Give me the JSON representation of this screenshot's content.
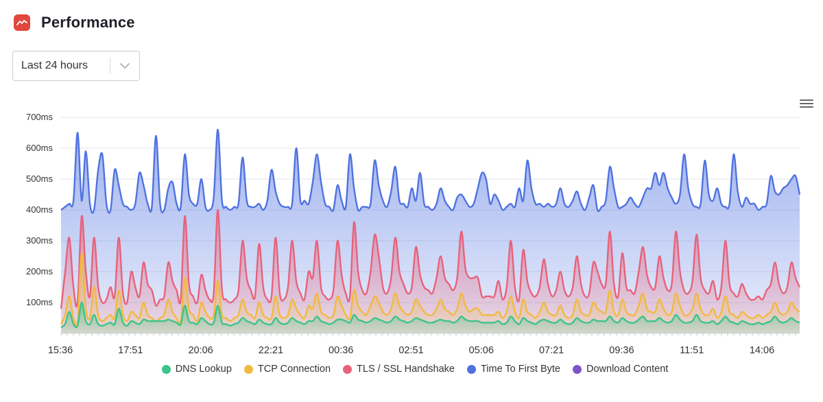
{
  "header": {
    "title": "Performance",
    "logo_icon": "chart-line-icon",
    "logo_color": "#e0473d"
  },
  "range_select": {
    "value": "Last 24 hours",
    "icon": "chevron-down-icon"
  },
  "toolbar": {
    "menu_icon": "hamburger-menu-icon"
  },
  "colors": {
    "dns": "#3cc48a",
    "tcp": "#f2b940",
    "tls": "#e8627a",
    "ttfb": "#4f72e0",
    "download": "#7c56c9"
  },
  "chart_data": {
    "type": "area",
    "title": "",
    "xlabel": "",
    "ylabel": "",
    "ylim": [
      0,
      700
    ],
    "y_ticks": [
      "100ms",
      "200ms",
      "300ms",
      "400ms",
      "500ms",
      "600ms",
      "700ms"
    ],
    "x_ticks": [
      "15:36",
      "17:51",
      "20:06",
      "22:21",
      "00:36",
      "02:51",
      "05:06",
      "07:21",
      "09:36",
      "11:51",
      "14:06"
    ],
    "grid": true,
    "stacked": false,
    "legend_position": "bottom",
    "series": [
      {
        "name": "Time To First Byte",
        "color": "#4f72e0",
        "values": [
          400,
          410,
          420,
          430,
          650,
          430,
          590,
          420,
          400,
          530,
          580,
          420,
          400,
          530,
          480,
          420,
          410,
          400,
          420,
          520,
          480,
          420,
          410,
          640,
          420,
          400,
          470,
          490,
          420,
          410,
          580,
          450,
          420,
          420,
          500,
          410,
          400,
          440,
          660,
          430,
          410,
          400,
          410,
          420,
          570,
          430,
          410,
          410,
          420,
          400,
          430,
          530,
          460,
          420,
          410,
          410,
          420,
          600,
          430,
          430,
          420,
          490,
          580,
          490,
          420,
          410,
          400,
          480,
          430,
          410,
          580,
          470,
          400,
          410,
          410,
          420,
          560,
          480,
          430,
          410,
          460,
          540,
          430,
          420,
          410,
          470,
          430,
          520,
          420,
          410,
          400,
          420,
          470,
          430,
          410,
          400,
          440,
          450,
          430,
          410,
          420,
          470,
          520,
          500,
          420,
          450,
          430,
          400,
          410,
          420,
          410,
          470,
          430,
          560,
          470,
          420,
          420,
          410,
          420,
          410,
          420,
          470,
          420,
          410,
          430,
          460,
          420,
          400,
          440,
          480,
          400,
          410,
          430,
          540,
          470,
          410,
          410,
          420,
          440,
          420,
          410,
          440,
          470,
          470,
          520,
          480,
          520,
          470,
          440,
          420,
          450,
          580,
          470,
          420,
          410,
          420,
          560,
          450,
          430,
          470,
          420,
          410,
          420,
          580,
          460,
          410,
          440,
          420,
          420,
          400,
          410,
          420,
          510,
          460,
          450,
          470,
          480,
          500,
          510,
          450
        ]
      },
      {
        "name": "TLS / SSL Handshake",
        "color": "#e8627a",
        "values": [
          80,
          200,
          310,
          150,
          100,
          380,
          200,
          120,
          310,
          150,
          100,
          110,
          150,
          120,
          310,
          130,
          100,
          200,
          150,
          120,
          230,
          160,
          140,
          90,
          110,
          120,
          230,
          170,
          140,
          110,
          380,
          160,
          120,
          100,
          190,
          140,
          110,
          130,
          400,
          140,
          110,
          100,
          110,
          140,
          300,
          180,
          140,
          120,
          290,
          150,
          110,
          120,
          310,
          130,
          110,
          150,
          300,
          170,
          130,
          110,
          200,
          180,
          300,
          150,
          120,
          110,
          140,
          300,
          190,
          130,
          120,
          360,
          200,
          140,
          130,
          200,
          320,
          250,
          150,
          130,
          180,
          310,
          200,
          160,
          130,
          150,
          280,
          190,
          150,
          140,
          130,
          180,
          250,
          180,
          160,
          140,
          180,
          330,
          210,
          180,
          180,
          180,
          120,
          120,
          120,
          120,
          170,
          110,
          150,
          300,
          150,
          110,
          270,
          170,
          130,
          120,
          150,
          240,
          160,
          120,
          140,
          200,
          140,
          120,
          150,
          250,
          160,
          120,
          130,
          230,
          200,
          160,
          160,
          330,
          160,
          120,
          260,
          150,
          140,
          130,
          200,
          280,
          190,
          150,
          150,
          250,
          180,
          140,
          160,
          330,
          200,
          140,
          130,
          170,
          320,
          180,
          140,
          130,
          170,
          110,
          150,
          300,
          160,
          130,
          120,
          160,
          130,
          110,
          110,
          120,
          110,
          140,
          160,
          230,
          160,
          130,
          150,
          230,
          180,
          150
        ]
      },
      {
        "name": "TCP Connection",
        "color": "#f2b940",
        "values": [
          30,
          60,
          120,
          50,
          40,
          260,
          80,
          50,
          150,
          60,
          40,
          50,
          60,
          50,
          140,
          60,
          40,
          70,
          60,
          50,
          100,
          60,
          50,
          40,
          50,
          60,
          110,
          70,
          50,
          40,
          180,
          80,
          60,
          40,
          100,
          70,
          50,
          60,
          170,
          60,
          50,
          40,
          50,
          60,
          110,
          70,
          60,
          50,
          100,
          60,
          50,
          50,
          120,
          60,
          50,
          60,
          110,
          80,
          60,
          50,
          90,
          80,
          130,
          70,
          60,
          50,
          60,
          120,
          90,
          60,
          50,
          140,
          90,
          70,
          60,
          90,
          120,
          100,
          70,
          60,
          80,
          130,
          90,
          70,
          60,
          70,
          110,
          90,
          70,
          60,
          60,
          80,
          110,
          80,
          70,
          60,
          80,
          130,
          90,
          70,
          80,
          80,
          60,
          60,
          60,
          60,
          70,
          50,
          70,
          120,
          70,
          50,
          110,
          70,
          60,
          50,
          70,
          100,
          70,
          60,
          60,
          90,
          60,
          50,
          60,
          110,
          70,
          60,
          60,
          100,
          80,
          70,
          70,
          140,
          70,
          60,
          110,
          70,
          60,
          60,
          90,
          130,
          80,
          70,
          70,
          110,
          80,
          60,
          70,
          130,
          90,
          60,
          60,
          80,
          130,
          80,
          60,
          60,
          80,
          50,
          70,
          120,
          70,
          60,
          50,
          70,
          60,
          50,
          50,
          60,
          50,
          60,
          70,
          100,
          70,
          60,
          70,
          100,
          80,
          70
        ]
      },
      {
        "name": "DNS Lookup",
        "color": "#3cc48a",
        "values": [
          20,
          30,
          70,
          30,
          25,
          100,
          40,
          30,
          60,
          30,
          25,
          30,
          35,
          30,
          80,
          35,
          25,
          40,
          35,
          30,
          45,
          40,
          40,
          40,
          40,
          40,
          45,
          40,
          35,
          30,
          90,
          40,
          35,
          30,
          50,
          40,
          30,
          35,
          90,
          35,
          30,
          25,
          30,
          35,
          50,
          40,
          35,
          30,
          45,
          35,
          30,
          30,
          50,
          35,
          30,
          35,
          50,
          40,
          35,
          30,
          40,
          40,
          55,
          40,
          35,
          30,
          35,
          45,
          45,
          40,
          35,
          60,
          45,
          40,
          35,
          40,
          50,
          45,
          40,
          35,
          40,
          55,
          45,
          40,
          35,
          40,
          50,
          45,
          40,
          35,
          35,
          40,
          45,
          40,
          40,
          35,
          40,
          55,
          45,
          40,
          40,
          40,
          35,
          35,
          35,
          35,
          40,
          30,
          35,
          55,
          40,
          30,
          50,
          40,
          35,
          30,
          40,
          45,
          40,
          35,
          35,
          45,
          35,
          30,
          35,
          50,
          40,
          35,
          35,
          45,
          40,
          40,
          40,
          55,
          40,
          35,
          50,
          40,
          35,
          35,
          45,
          55,
          40,
          40,
          40,
          50,
          40,
          35,
          40,
          60,
          45,
          35,
          35,
          40,
          60,
          40,
          35,
          35,
          40,
          30,
          40,
          55,
          40,
          35,
          30,
          40,
          35,
          30,
          30,
          35,
          30,
          35,
          40,
          55,
          40,
          35,
          40,
          50,
          40,
          35
        ]
      },
      {
        "name": "Download Content",
        "color": "#7c56c9",
        "values": []
      }
    ]
  },
  "legend": [
    {
      "label": "DNS Lookup",
      "color": "#3cc48a"
    },
    {
      "label": "TCP Connection",
      "color": "#f2b940"
    },
    {
      "label": "TLS / SSL Handshake",
      "color": "#e8627a"
    },
    {
      "label": "Time To First Byte",
      "color": "#4f72e0"
    },
    {
      "label": "Download Content",
      "color": "#7c56c9"
    }
  ]
}
